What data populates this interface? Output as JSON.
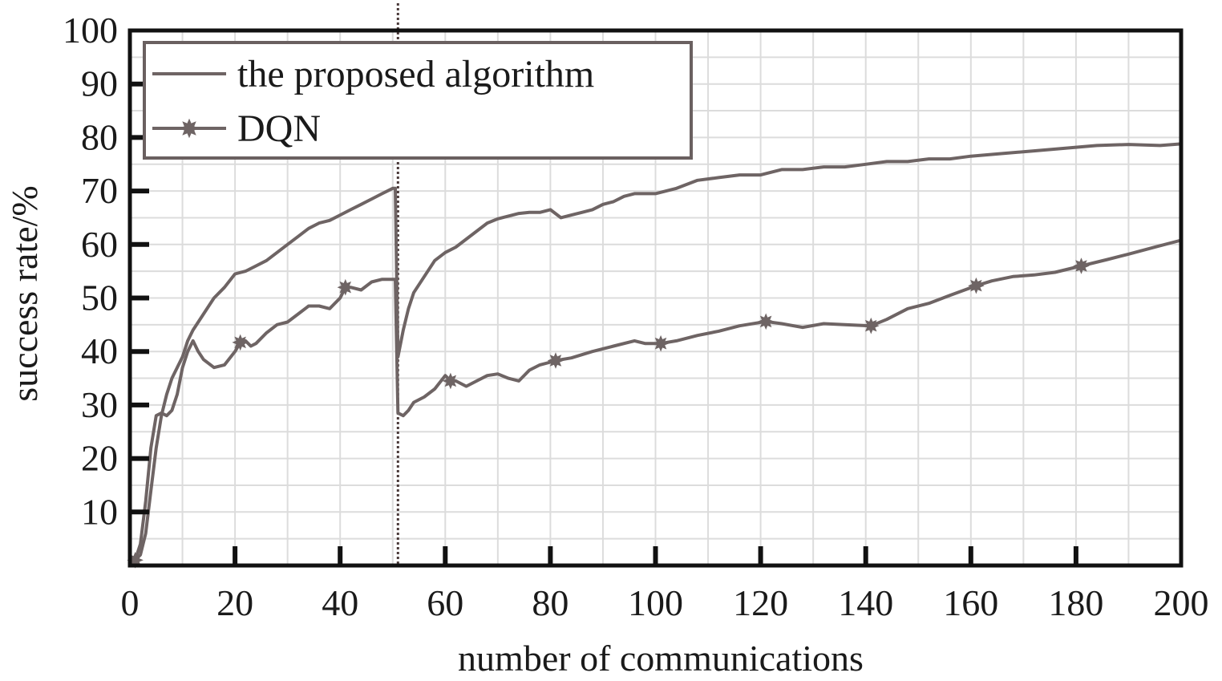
{
  "chart_data": {
    "type": "line",
    "title": "",
    "xlabel": "number of communications",
    "ylabel": "success rate/%",
    "xlim": [
      0,
      200
    ],
    "ylim": [
      0,
      100
    ],
    "x_ticks": [
      0,
      20,
      40,
      60,
      80,
      100,
      120,
      140,
      160,
      180,
      200
    ],
    "x_tick_labels": [
      "0",
      "20",
      "40",
      "60",
      "80",
      "100",
      "120",
      "140",
      "160",
      "180",
      "200"
    ],
    "y_ticks": [
      10,
      20,
      30,
      40,
      50,
      60,
      70,
      80,
      90,
      100
    ],
    "y_tick_labels": [
      "10",
      "20",
      "30",
      "40",
      "50",
      "60",
      "70",
      "80",
      "90",
      "100"
    ],
    "grid": true,
    "legend_position": "top-left",
    "vertical_marker_x": 51,
    "series": [
      {
        "name": "the proposed algorithm",
        "color": "#6e6464",
        "marker": "none",
        "points": [
          [
            1,
            1
          ],
          [
            2,
            2
          ],
          [
            3,
            6
          ],
          [
            4,
            14
          ],
          [
            5,
            22
          ],
          [
            6,
            28
          ],
          [
            7,
            32
          ],
          [
            8,
            35
          ],
          [
            9,
            37
          ],
          [
            10,
            39
          ],
          [
            11,
            42
          ],
          [
            12,
            44
          ],
          [
            14,
            47
          ],
          [
            16,
            50
          ],
          [
            18,
            52
          ],
          [
            20,
            54.5
          ],
          [
            22,
            55
          ],
          [
            24,
            56
          ],
          [
            26,
            57
          ],
          [
            28,
            58.5
          ],
          [
            30,
            60
          ],
          [
            32,
            61.5
          ],
          [
            34,
            63
          ],
          [
            36,
            64
          ],
          [
            38,
            64.5
          ],
          [
            40,
            65.5
          ],
          [
            42,
            66.5
          ],
          [
            44,
            67.5
          ],
          [
            46,
            68.5
          ],
          [
            48,
            69.5
          ],
          [
            50,
            70.5
          ],
          [
            50.5,
            70.5
          ],
          [
            51,
            39
          ],
          [
            52,
            44
          ],
          [
            53,
            48
          ],
          [
            54,
            51
          ],
          [
            56,
            54
          ],
          [
            58,
            57
          ],
          [
            60,
            58.5
          ],
          [
            62,
            59.5
          ],
          [
            64,
            61
          ],
          [
            66,
            62.5
          ],
          [
            68,
            64
          ],
          [
            70,
            64.8
          ],
          [
            72,
            65.3
          ],
          [
            74,
            65.8
          ],
          [
            76,
            66
          ],
          [
            78,
            66
          ],
          [
            80,
            66.5
          ],
          [
            82,
            65
          ],
          [
            84,
            65.5
          ],
          [
            86,
            66
          ],
          [
            88,
            66.5
          ],
          [
            90,
            67.5
          ],
          [
            92,
            68
          ],
          [
            94,
            69
          ],
          [
            96,
            69.5
          ],
          [
            98,
            69.5
          ],
          [
            100,
            69.5
          ],
          [
            104,
            70.5
          ],
          [
            108,
            72
          ],
          [
            112,
            72.5
          ],
          [
            116,
            73
          ],
          [
            120,
            73
          ],
          [
            124,
            74
          ],
          [
            128,
            74
          ],
          [
            132,
            74.5
          ],
          [
            136,
            74.5
          ],
          [
            140,
            75
          ],
          [
            144,
            75.5
          ],
          [
            148,
            75.5
          ],
          [
            152,
            76
          ],
          [
            156,
            76
          ],
          [
            160,
            76.5
          ],
          [
            166,
            77
          ],
          [
            172,
            77.5
          ],
          [
            178,
            78
          ],
          [
            184,
            78.5
          ],
          [
            190,
            78.7
          ],
          [
            196,
            78.5
          ],
          [
            200,
            78.8
          ]
        ]
      },
      {
        "name": "DQN",
        "color": "#6e6464",
        "marker": "star",
        "marker_x": [
          1,
          21,
          41,
          61,
          81,
          101,
          121,
          141,
          161,
          181
        ],
        "points": [
          [
            1,
            1
          ],
          [
            2,
            4
          ],
          [
            3,
            12
          ],
          [
            4,
            22
          ],
          [
            5,
            28
          ],
          [
            6,
            28.5
          ],
          [
            7,
            28
          ],
          [
            8,
            29
          ],
          [
            9,
            32
          ],
          [
            10,
            37
          ],
          [
            11,
            40
          ],
          [
            12,
            42
          ],
          [
            13,
            40
          ],
          [
            14,
            38.5
          ],
          [
            16,
            37
          ],
          [
            18,
            37.5
          ],
          [
            20,
            40
          ],
          [
            21,
            41.7
          ],
          [
            22,
            42
          ],
          [
            23,
            41
          ],
          [
            24,
            41.5
          ],
          [
            26,
            43.5
          ],
          [
            28,
            45
          ],
          [
            30,
            45.5
          ],
          [
            32,
            47
          ],
          [
            34,
            48.5
          ],
          [
            36,
            48.5
          ],
          [
            38,
            48
          ],
          [
            40,
            50
          ],
          [
            41,
            52
          ],
          [
            42,
            52
          ],
          [
            44,
            51.5
          ],
          [
            46,
            53
          ],
          [
            48,
            53.5
          ],
          [
            50,
            53.5
          ],
          [
            50.5,
            53.5
          ],
          [
            51,
            28.5
          ],
          [
            52,
            28
          ],
          [
            53,
            29
          ],
          [
            54,
            30.5
          ],
          [
            56,
            31.5
          ],
          [
            58,
            33
          ],
          [
            60,
            35.5
          ],
          [
            61,
            34.5
          ],
          [
            62,
            34.5
          ],
          [
            64,
            33.5
          ],
          [
            66,
            34.5
          ],
          [
            68,
            35.5
          ],
          [
            70,
            35.8
          ],
          [
            72,
            35
          ],
          [
            74,
            34.5
          ],
          [
            76,
            36.5
          ],
          [
            78,
            37.5
          ],
          [
            80,
            38
          ],
          [
            81,
            38.3
          ],
          [
            84,
            38.8
          ],
          [
            88,
            40
          ],
          [
            92,
            41
          ],
          [
            96,
            42
          ],
          [
            98,
            41.5
          ],
          [
            101,
            41.5
          ],
          [
            104,
            42
          ],
          [
            108,
            43
          ],
          [
            112,
            43.8
          ],
          [
            116,
            44.8
          ],
          [
            121,
            45.6
          ],
          [
            124,
            45.2
          ],
          [
            128,
            44.5
          ],
          [
            132,
            45.2
          ],
          [
            136,
            45
          ],
          [
            141,
            44.8
          ],
          [
            144,
            46
          ],
          [
            148,
            48
          ],
          [
            152,
            49
          ],
          [
            156,
            50.5
          ],
          [
            161,
            52.3
          ],
          [
            164,
            53.2
          ],
          [
            168,
            54
          ],
          [
            172,
            54.3
          ],
          [
            176,
            54.8
          ],
          [
            181,
            56
          ],
          [
            186,
            57.2
          ],
          [
            190,
            58.2
          ],
          [
            195,
            59.5
          ],
          [
            200,
            60.8
          ]
        ]
      }
    ]
  }
}
